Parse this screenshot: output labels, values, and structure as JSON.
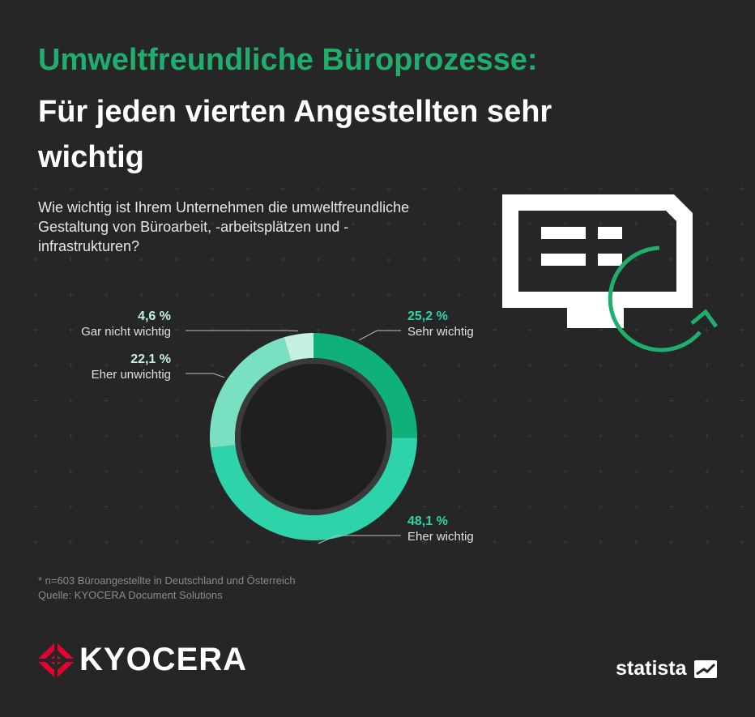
{
  "header": {
    "title_line1": "Umweltfreundliche Büroprozesse:",
    "title_line2": "Für jeden vierten Angestellten sehr wichtig"
  },
  "question": "Wie wichtig ist Ihrem Unternehmen die umweltfreundliche Gestaltung von Büroarbeit, -arbeitsplätzen und -infrastrukturen?",
  "chart_data": {
    "type": "pie",
    "unit": "%",
    "categories": [
      "Sehr wichtig",
      "Eher wichtig",
      "Eher unwichtig",
      "Gar nicht wichtig"
    ],
    "values": [
      25.2,
      48.1,
      22.1,
      4.6
    ],
    "value_labels": [
      "25,2 %",
      "48,1 %",
      "22,1 %",
      "4,6 %"
    ],
    "colors": [
      "#0fb07a",
      "#2fd3a9",
      "#7ae0c2",
      "#c3f0e1"
    ],
    "style": "donut"
  },
  "footer": {
    "footnote": "* n=603 Büroangestellte in Deutschland und Österreich",
    "source": "Quelle: KYOCERA Document Solutions"
  },
  "brands": {
    "kyocera": "KYOCERA",
    "statista": "statista",
    "kyocera_logo_icon": "kyocera-logo-icon",
    "statista_logo_icon": "statista-logo-icon",
    "monitor_icon": "monitor-refresh-icon"
  },
  "colors": {
    "background": "#262626",
    "accent_green": "#1fae6e",
    "kyocera_red": "#e4032e"
  }
}
